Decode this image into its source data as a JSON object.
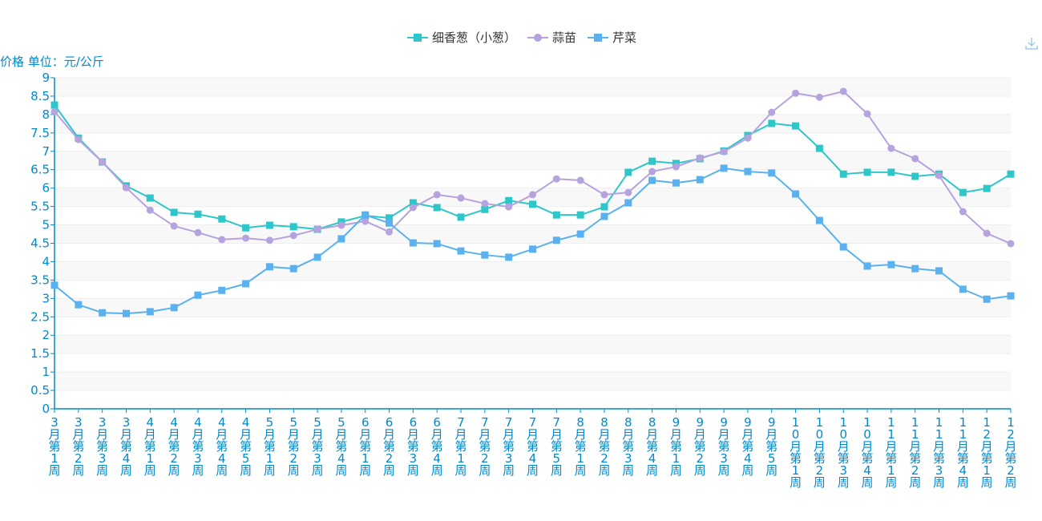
{
  "chart_data": {
    "type": "line",
    "title": "",
    "xlabel": "",
    "ylabel": "价格 单位：元/公斤",
    "ylim": [
      0,
      9
    ],
    "yticks": [
      "0",
      "0.5",
      "1",
      "1.5",
      "2",
      "2.5",
      "3",
      "3.5",
      "4",
      "4.5",
      "5",
      "5.5",
      "6",
      "6.5",
      "7",
      "7.5",
      "8",
      "8.5",
      "9"
    ],
    "grid": true,
    "legend_position": "top-center",
    "categories": [
      "3月第1周",
      "3月第2周",
      "3月第3周",
      "3月第4周",
      "4月第1周",
      "4月第2周",
      "4月第3周",
      "4月第4周",
      "4月第5周",
      "5月第1周",
      "5月第2周",
      "5月第3周",
      "5月第4周",
      "6月第1周",
      "6月第2周",
      "6月第3周",
      "6月第4周",
      "7月第1周",
      "7月第2周",
      "7月第3周",
      "7月第4周",
      "7月第5周",
      "8月第1周",
      "8月第2周",
      "8月第3周",
      "8月第4周",
      "9月第1周",
      "9月第2周",
      "9月第3周",
      "9月第4周",
      "9月第5周",
      "10月第1周",
      "10月第2周",
      "10月第3周",
      "10月第4周",
      "11月第1周",
      "11月第2周",
      "11月第3周",
      "11月第4周",
      "12月第1周",
      "12月第2周"
    ],
    "series": [
      {
        "name": "细香葱（小葱）",
        "color": "#2ec7c9",
        "marker": "square",
        "values": [
          8.26,
          7.36,
          6.71,
          6.06,
          5.73,
          5.34,
          5.29,
          5.16,
          4.92,
          4.99,
          4.95,
          4.88,
          5.08,
          5.25,
          5.19,
          5.6,
          5.47,
          5.21,
          5.42,
          5.66,
          5.56,
          5.27,
          5.27,
          5.49,
          6.43,
          6.73,
          6.67,
          6.8,
          7.01,
          7.43,
          7.76,
          7.69,
          7.08,
          6.38,
          6.43,
          6.43,
          6.32,
          6.38,
          5.88,
          5.99,
          6.38
        ]
      },
      {
        "name": "蒜苗",
        "color": "#b6a2de",
        "marker": "circle",
        "values": [
          8.08,
          7.32,
          6.71,
          6.01,
          5.4,
          4.97,
          4.79,
          4.6,
          4.64,
          4.58,
          4.71,
          4.88,
          4.99,
          5.1,
          4.81,
          5.47,
          5.82,
          5.73,
          5.58,
          5.49,
          5.82,
          6.25,
          6.21,
          5.82,
          5.88,
          6.45,
          6.58,
          6.82,
          6.99,
          7.36,
          8.06,
          8.58,
          8.47,
          8.63,
          8.02,
          7.08,
          6.8,
          6.34,
          5.36,
          4.77,
          4.49
        ]
      },
      {
        "name": "芹菜",
        "color": "#5ab1ef",
        "marker": "square",
        "values": [
          3.36,
          2.83,
          2.61,
          2.59,
          2.64,
          2.75,
          3.09,
          3.22,
          3.4,
          3.86,
          3.81,
          4.12,
          4.62,
          5.27,
          5.05,
          4.51,
          4.49,
          4.29,
          4.18,
          4.12,
          4.34,
          4.58,
          4.75,
          5.23,
          5.6,
          6.21,
          6.14,
          6.23,
          6.54,
          6.45,
          6.41,
          5.84,
          5.12,
          4.4,
          3.88,
          3.92,
          3.81,
          3.75,
          3.25,
          2.98,
          3.07
        ]
      }
    ]
  },
  "axis_color": "#008acd",
  "toolbox": {
    "icon": "download-icon"
  }
}
